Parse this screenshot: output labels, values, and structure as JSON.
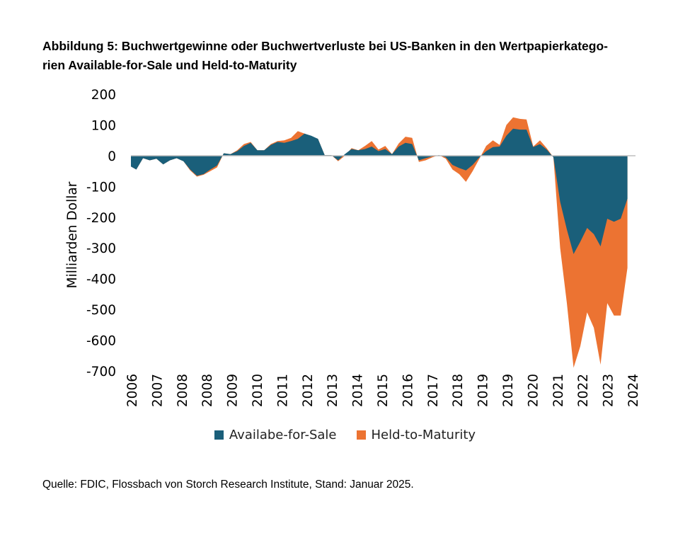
{
  "title": {
    "line1": "Abbildung 5: Buchwertgewinne oder Buchwertverluste bei US-Banken in den Wertpapierkatego-",
    "line2": "rien Available-for-Sale und Held-to-Maturity"
  },
  "source": "Quelle: FDIC, Flossbach von Storch Research Institute, Stand: Januar 2025.",
  "colors": {
    "afs": "#1a5f7a",
    "htm": "#ec7332"
  },
  "chart_data": {
    "type": "area",
    "stacked": true,
    "ylabel": "Milliarden Dollar",
    "xlabel": "",
    "ylim": [
      -700,
      200
    ],
    "yticks": [
      200,
      100,
      0,
      -100,
      -200,
      -300,
      -400,
      -500,
      -600,
      -700
    ],
    "ytick_labels": [
      "200",
      "100",
      "0",
      "-100",
      "-200",
      "-300",
      "-400",
      "-500",
      "-600",
      "-700"
    ],
    "xlim": [
      2006.0,
      2024.75
    ],
    "xtick_labels": [
      "2006",
      "2007",
      "2008",
      "2008",
      "2009",
      "2010",
      "2011",
      "2012",
      "2013",
      "2014",
      "2015",
      "2016",
      "2017",
      "2018",
      "2019",
      "2019",
      "2020",
      "2021",
      "2022",
      "2023",
      "2024"
    ],
    "legend": [
      "Availabe-for-Sale",
      "Held-to-Maturity"
    ],
    "legend_position": "bottom",
    "series": [
      {
        "name": "Availabe-for-Sale",
        "points": [
          [
            2006.0,
            -35
          ],
          [
            2006.2,
            -45
          ],
          [
            2006.45,
            -8
          ],
          [
            2006.7,
            -15
          ],
          [
            2006.95,
            -10
          ],
          [
            2007.2,
            -28
          ],
          [
            2007.45,
            -15
          ],
          [
            2007.7,
            -8
          ],
          [
            2007.95,
            -18
          ],
          [
            2008.2,
            -45
          ],
          [
            2008.45,
            -65
          ],
          [
            2008.7,
            -60
          ],
          [
            2008.95,
            -45
          ],
          [
            2009.2,
            -32
          ],
          [
            2009.45,
            8
          ],
          [
            2009.7,
            5
          ],
          [
            2009.95,
            15
          ],
          [
            2010.2,
            32
          ],
          [
            2010.45,
            42
          ],
          [
            2010.7,
            18
          ],
          [
            2010.95,
            18
          ],
          [
            2011.2,
            35
          ],
          [
            2011.45,
            45
          ],
          [
            2011.7,
            42
          ],
          [
            2011.95,
            48
          ],
          [
            2012.2,
            55
          ],
          [
            2012.45,
            72
          ],
          [
            2012.7,
            65
          ],
          [
            2012.95,
            55
          ],
          [
            2013.2,
            2
          ],
          [
            2013.45,
            2
          ],
          [
            2013.7,
            -15
          ],
          [
            2013.95,
            5
          ],
          [
            2014.2,
            22
          ],
          [
            2014.45,
            18
          ],
          [
            2014.7,
            22
          ],
          [
            2014.95,
            30
          ],
          [
            2015.2,
            15
          ],
          [
            2015.45,
            22
          ],
          [
            2015.7,
            5
          ],
          [
            2015.95,
            30
          ],
          [
            2016.2,
            42
          ],
          [
            2016.45,
            38
          ],
          [
            2016.7,
            -15
          ],
          [
            2016.95,
            -8
          ],
          [
            2017.2,
            -2
          ],
          [
            2017.45,
            2
          ],
          [
            2017.7,
            -5
          ],
          [
            2017.95,
            -30
          ],
          [
            2018.2,
            -40
          ],
          [
            2018.45,
            -48
          ],
          [
            2018.7,
            -30
          ],
          [
            2018.95,
            -5
          ],
          [
            2019.2,
            15
          ],
          [
            2019.45,
            28
          ],
          [
            2019.7,
            30
          ],
          [
            2019.95,
            65
          ],
          [
            2020.2,
            88
          ],
          [
            2020.45,
            85
          ],
          [
            2020.7,
            85
          ],
          [
            2020.95,
            28
          ],
          [
            2021.2,
            38
          ],
          [
            2021.45,
            20
          ],
          [
            2021.7,
            -5
          ],
          [
            2021.95,
            -150
          ],
          [
            2022.2,
            -240
          ],
          [
            2022.45,
            -320
          ],
          [
            2022.7,
            -280
          ],
          [
            2022.95,
            -235
          ],
          [
            2023.2,
            -255
          ],
          [
            2023.45,
            -295
          ],
          [
            2023.7,
            -205
          ],
          [
            2023.95,
            -215
          ],
          [
            2024.2,
            -205
          ],
          [
            2024.45,
            -140
          ]
        ]
      },
      {
        "name": "Held-to-Maturity",
        "points": [
          [
            2006.0,
            -35
          ],
          [
            2006.2,
            -45
          ],
          [
            2006.45,
            -8
          ],
          [
            2006.7,
            -15
          ],
          [
            2006.95,
            -10
          ],
          [
            2007.2,
            -28
          ],
          [
            2007.45,
            -15
          ],
          [
            2007.7,
            -8
          ],
          [
            2007.95,
            -18
          ],
          [
            2008.2,
            -48
          ],
          [
            2008.45,
            -68
          ],
          [
            2008.7,
            -62
          ],
          [
            2008.95,
            -50
          ],
          [
            2009.2,
            -38
          ],
          [
            2009.45,
            8
          ],
          [
            2009.7,
            5
          ],
          [
            2009.95,
            18
          ],
          [
            2010.2,
            38
          ],
          [
            2010.45,
            45
          ],
          [
            2010.7,
            18
          ],
          [
            2010.95,
            18
          ],
          [
            2011.2,
            38
          ],
          [
            2011.45,
            48
          ],
          [
            2011.7,
            50
          ],
          [
            2011.95,
            58
          ],
          [
            2012.2,
            80
          ],
          [
            2012.45,
            72
          ],
          [
            2012.7,
            63
          ],
          [
            2012.95,
            55
          ],
          [
            2013.2,
            2
          ],
          [
            2013.45,
            2
          ],
          [
            2013.7,
            -18
          ],
          [
            2013.95,
            0
          ],
          [
            2014.2,
            25
          ],
          [
            2014.45,
            18
          ],
          [
            2014.7,
            32
          ],
          [
            2014.95,
            48
          ],
          [
            2015.2,
            20
          ],
          [
            2015.45,
            32
          ],
          [
            2015.7,
            5
          ],
          [
            2015.95,
            40
          ],
          [
            2016.2,
            62
          ],
          [
            2016.45,
            58
          ],
          [
            2016.7,
            -20
          ],
          [
            2016.95,
            -15
          ],
          [
            2017.2,
            -5
          ],
          [
            2017.45,
            2
          ],
          [
            2017.7,
            -10
          ],
          [
            2017.95,
            -45
          ],
          [
            2018.2,
            -60
          ],
          [
            2018.45,
            -85
          ],
          [
            2018.7,
            -50
          ],
          [
            2018.95,
            -10
          ],
          [
            2019.2,
            32
          ],
          [
            2019.45,
            50
          ],
          [
            2019.7,
            35
          ],
          [
            2019.95,
            100
          ],
          [
            2020.2,
            125
          ],
          [
            2020.45,
            120
          ],
          [
            2020.7,
            118
          ],
          [
            2020.95,
            30
          ],
          [
            2021.2,
            50
          ],
          [
            2021.45,
            25
          ],
          [
            2021.7,
            -5
          ],
          [
            2021.95,
            -300
          ],
          [
            2022.2,
            -480
          ],
          [
            2022.45,
            -690
          ],
          [
            2022.7,
            -620
          ],
          [
            2022.95,
            -510
          ],
          [
            2023.2,
            -560
          ],
          [
            2023.45,
            -680
          ],
          [
            2023.7,
            -480
          ],
          [
            2023.95,
            -520
          ],
          [
            2024.2,
            -520
          ],
          [
            2024.45,
            -365
          ]
        ]
      }
    ]
  }
}
